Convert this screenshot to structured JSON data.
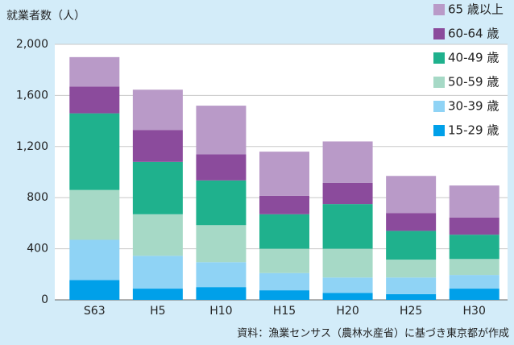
{
  "chart_data": {
    "type": "stacked_bar",
    "y_label": "就業者数（人）",
    "note": "資料：漁業センサス（農林水産省）に基づき東京都が作成",
    "categories": [
      "S63",
      "H5",
      "H10",
      "H15",
      "H20",
      "H25",
      "H30"
    ],
    "series": [
      {
        "name": "15-29 歳",
        "color": "#00a0e9",
        "values": [
          155,
          88,
          100,
          75,
          55,
          45,
          88
        ]
      },
      {
        "name": "30-39 歳",
        "color": "#8fd3f5",
        "values": [
          315,
          257,
          195,
          135,
          120,
          130,
          107
        ]
      },
      {
        "name": "50-59 歳",
        "color": "#a6d9c6",
        "values": [
          390,
          325,
          290,
          190,
          225,
          140,
          125
        ]
      },
      {
        "name": "40-49 歳",
        "color": "#1fb18d",
        "values": [
          600,
          410,
          350,
          270,
          350,
          225,
          190
        ]
      },
      {
        "name": "60-64 歳",
        "color": "#8b4b9c",
        "values": [
          210,
          250,
          205,
          145,
          165,
          140,
          135
        ]
      },
      {
        "name": "65 歳以上",
        "color": "#b99ac8",
        "values": [
          230,
          315,
          380,
          345,
          325,
          290,
          250
        ]
      }
    ],
    "ylim": [
      0,
      2000
    ],
    "yticks": [
      0,
      400,
      800,
      {
        "value": 1200,
        "label": "1,200"
      },
      {
        "value": 1600,
        "label": "1,600"
      },
      {
        "value": 2000,
        "label": "2,000"
      }
    ],
    "grid": true,
    "legend": "top-right"
  }
}
